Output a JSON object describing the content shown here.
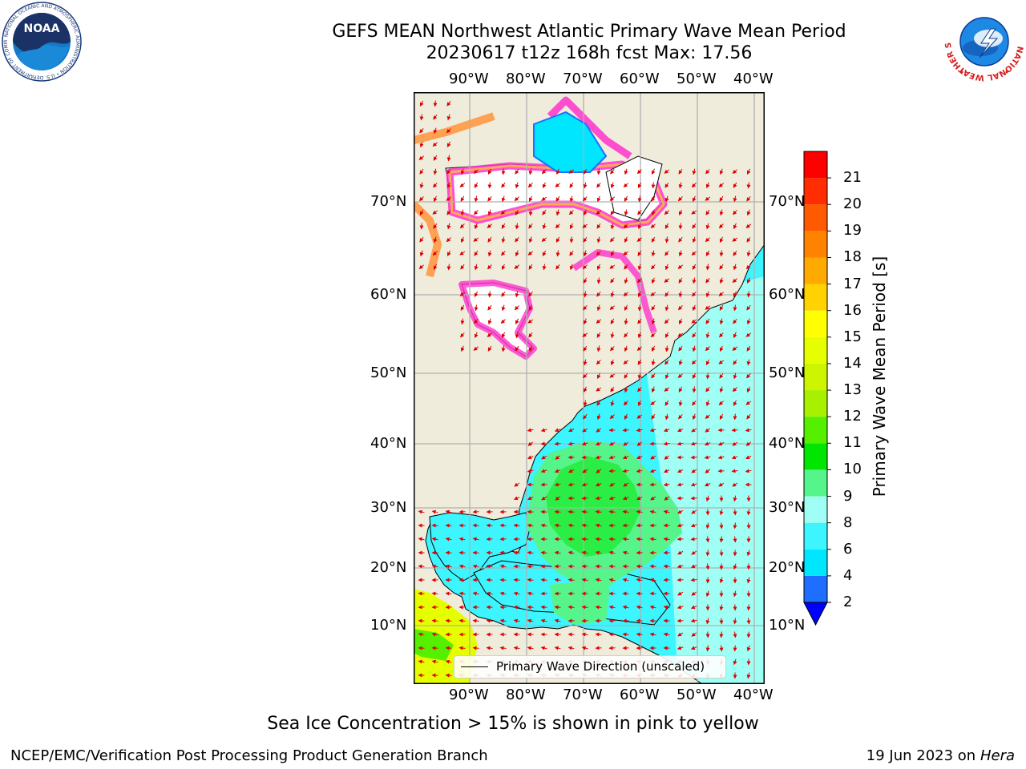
{
  "title": {
    "line1": "GEFS MEAN Northwest Atlantic Primary Wave Mean Period",
    "line2": "20230617 t12z 168h fcst   Max: 17.56"
  },
  "logos": {
    "noaa": {
      "text": "NOAA",
      "ring": "NATIONAL OCEANIC AND ATMOSPHERIC ADMINISTRATION • U.S. DEPARTMENT OF COMMERCE •"
    },
    "nws": {
      "ring": "NATIONAL WEATHER SERVICE"
    }
  },
  "map": {
    "lon_labels": [
      "90°W",
      "80°W",
      "70°W",
      "60°W",
      "50°W",
      "40°W"
    ],
    "lat_labels": [
      "70°N",
      "60°N",
      "50°N",
      "40°N",
      "30°N",
      "20°N",
      "10°N"
    ],
    "legend_label": "Primary Wave Direction (unscaled)",
    "colors": {
      "land": "#efecdc",
      "sea_ice_open": "#ffffff",
      "gridline": "#b0b0b0",
      "arrow": "#e00000"
    }
  },
  "colorbar": {
    "title": "Primary Wave Mean Period [s]",
    "ticks": [
      "2",
      "4",
      "6",
      "8",
      "9",
      "10",
      "11",
      "12",
      "13",
      "14",
      "15",
      "16",
      "17",
      "18",
      "19",
      "20",
      "21"
    ],
    "levels": [
      2,
      4,
      6,
      8,
      9,
      10,
      11,
      12,
      13,
      14,
      15,
      16,
      17,
      18,
      19,
      20,
      21
    ],
    "colors": [
      "#1e6eff",
      "#00e6ff",
      "#3cf5ff",
      "#a0fff5",
      "#55f58c",
      "#00e600",
      "#55f000",
      "#a6f000",
      "#cdf500",
      "#e6ff00",
      "#ffff00",
      "#ffd200",
      "#ffaa00",
      "#ff8200",
      "#ff5a00",
      "#ff2d00",
      "#ff0000"
    ],
    "extend_color": "#0000ff"
  },
  "footer": {
    "note": "Sea Ice Concentration > 15% is shown in pink to yellow",
    "credit": "NCEP/EMC/Verification Post Processing Product Generation Branch",
    "date": "19 Jun 2023 on",
    "host": "Hera"
  }
}
